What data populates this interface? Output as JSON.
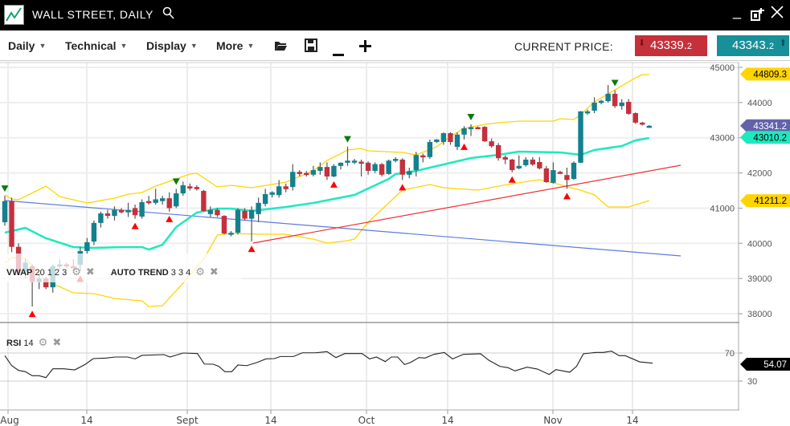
{
  "titlebar": {
    "title": "WALL STREET, DAILY",
    "icons": [
      "logo-chart-icon",
      "search-icon",
      "minimize-icon",
      "popout-icon",
      "close-icon"
    ]
  },
  "toolbar": {
    "menus": [
      {
        "label": "Daily"
      },
      {
        "label": "Technical"
      },
      {
        "label": "Display"
      },
      {
        "label": "More"
      }
    ],
    "icons": [
      "folder-open-icon",
      "save-icon",
      "zoom-out-icon",
      "zoom-in-icon"
    ],
    "current_price_label": "CURRENT PRICE:",
    "sell": {
      "main": "43339.",
      "small": "2",
      "color": "#c5303b"
    },
    "buy": {
      "main": "43343.",
      "small": "2",
      "color": "#17909a"
    }
  },
  "legends": {
    "vwap": {
      "name": "VWAP",
      "params": "20 1 2 3"
    },
    "trend": {
      "name": "AUTO TREND",
      "params": "3 3 4"
    },
    "rsi": {
      "name": "RSI",
      "params": "14"
    }
  },
  "chart_data": {
    "type": "candlestick",
    "colors": {
      "up": "#13808e",
      "down": "#c4303d",
      "vwap": "#1de9c0",
      "bands": "#ffd400",
      "trend_down": "#5b7be0",
      "trend_up": "#f03030",
      "signal_up": "#ff0000",
      "signal_down": "#0a7a0a"
    },
    "y_ticks": [
      "45000",
      "44000",
      "43000",
      "42000",
      "41000",
      "40000",
      "39000",
      "38000"
    ],
    "ylim": [
      38000,
      45000
    ],
    "x_ticks": [
      "Aug",
      "14",
      "Sept",
      "14",
      "Oct",
      "14",
      "Nov",
      "14"
    ],
    "candles_ohlc": [
      [
        40600,
        41350,
        40500,
        41200
      ],
      [
        41200,
        41300,
        39750,
        39900
      ],
      [
        39900,
        40000,
        39100,
        39200
      ],
      [
        39200,
        39550,
        39000,
        39450
      ],
      [
        39350,
        39400,
        38200,
        38900
      ],
      [
        38900,
        39150,
        38700,
        39000
      ],
      [
        39000,
        39050,
        38700,
        38750
      ],
      [
        38750,
        39400,
        38600,
        39350
      ],
      [
        39350,
        39550,
        39250,
        39400
      ],
      [
        39400,
        39450,
        39300,
        39350
      ],
      [
        39350,
        39550,
        39200,
        39300
      ],
      [
        39390,
        39900,
        39200,
        39780
      ],
      [
        39780,
        40150,
        39700,
        40030
      ],
      [
        40050,
        40650,
        39950,
        40580
      ],
      [
        40580,
        40900,
        40450,
        40850
      ],
      [
        40850,
        40950,
        40700,
        40780
      ],
      [
        40780,
        41050,
        40650,
        40950
      ],
      [
        40950,
        41000,
        40850,
        40880
      ],
      [
        40880,
        41150,
        40750,
        40950
      ],
      [
        41000,
        41100,
        40700,
        40800
      ],
      [
        40760,
        41250,
        40700,
        41170
      ],
      [
        41200,
        41350,
        41100,
        41150
      ],
      [
        41150,
        41550,
        41100,
        41250
      ],
      [
        41200,
        41350,
        41100,
        41280
      ],
      [
        41280,
        41450,
        40900,
        41000
      ],
      [
        41050,
        41550,
        41000,
        41420
      ],
      [
        41420,
        41750,
        41350,
        41650
      ],
      [
        41620,
        41700,
        41500,
        41560
      ],
      [
        41600,
        41650,
        41500,
        41540
      ],
      [
        41490,
        41520,
        40900,
        40920
      ],
      [
        40830,
        41050,
        40750,
        40950
      ],
      [
        40950,
        41000,
        40750,
        40800
      ],
      [
        40780,
        40800,
        40250,
        40280
      ],
      [
        40250,
        40350,
        40200,
        40300
      ],
      [
        40300,
        41000,
        40250,
        40950
      ],
      [
        40920,
        41000,
        40650,
        40700
      ],
      [
        40700,
        41050,
        40050,
        40950
      ],
      [
        40830,
        41300,
        40600,
        41150
      ],
      [
        41120,
        41550,
        41050,
        41400
      ],
      [
        41380,
        41480,
        41300,
        41450
      ],
      [
        41370,
        41800,
        41300,
        41620
      ],
      [
        41620,
        41700,
        41450,
        41540
      ],
      [
        41600,
        42250,
        41500,
        42030
      ],
      [
        42030,
        42080,
        41900,
        41970
      ],
      [
        42000,
        42050,
        41900,
        41960
      ],
      [
        41950,
        42200,
        41900,
        42080
      ],
      [
        42060,
        42300,
        41950,
        42170
      ],
      [
        42170,
        42300,
        41800,
        41900
      ],
      [
        41900,
        42250,
        41880,
        42200
      ],
      [
        42200,
        42300,
        42100,
        42290
      ],
      [
        42290,
        42750,
        42200,
        42350
      ],
      [
        42300,
        42400,
        42250,
        42350
      ],
      [
        42320,
        42380,
        41900,
        42280
      ],
      [
        42290,
        42330,
        41950,
        42060
      ],
      [
        42060,
        42300,
        42000,
        42250
      ],
      [
        42250,
        42280,
        41900,
        41950
      ],
      [
        41970,
        42380,
        41950,
        42350
      ],
      [
        42350,
        42450,
        42300,
        42400
      ],
      [
        42380,
        42420,
        41800,
        41950
      ],
      [
        41950,
        42150,
        41850,
        42050
      ],
      [
        42080,
        42600,
        41900,
        42510
      ],
      [
        42500,
        42550,
        42300,
        42450
      ],
      [
        42450,
        42950,
        42400,
        42880
      ],
      [
        42880,
        42960,
        42850,
        42950
      ],
      [
        42880,
        43150,
        42800,
        43130
      ],
      [
        43130,
        43160,
        42800,
        42880
      ],
      [
        42740,
        43150,
        42650,
        43090
      ],
      [
        43090,
        43330,
        42950,
        43270
      ],
      [
        43270,
        43380,
        43050,
        43300
      ],
      [
        43300,
        43320,
        43250,
        43280
      ],
      [
        43310,
        43330,
        42880,
        42900
      ],
      [
        42900,
        42980,
        42720,
        42760
      ],
      [
        42790,
        42850,
        42350,
        42420
      ],
      [
        42450,
        42500,
        42250,
        42380
      ],
      [
        42380,
        42400,
        42020,
        42080
      ],
      [
        42130,
        42500,
        42100,
        42200
      ],
      [
        42220,
        42450,
        42180,
        42380
      ],
      [
        42380,
        42450,
        42200,
        42240
      ],
      [
        42310,
        42450,
        42100,
        42130
      ],
      [
        42130,
        42200,
        41720,
        41740
      ],
      [
        41720,
        42300,
        41700,
        42080
      ],
      [
        42030,
        42060,
        41970,
        41990
      ],
      [
        41940,
        42150,
        41550,
        41800
      ],
      [
        41830,
        42330,
        41800,
        42290
      ],
      [
        42290,
        43760,
        42280,
        43750
      ],
      [
        43700,
        43800,
        43650,
        43750
      ],
      [
        43770,
        44150,
        43700,
        44000
      ],
      [
        44000,
        44080,
        43950,
        44050
      ],
      [
        44040,
        44500,
        44000,
        44250
      ],
      [
        44250,
        44350,
        43850,
        43900
      ],
      [
        43900,
        44100,
        43800,
        44000
      ],
      [
        44020,
        44100,
        43650,
        43680
      ],
      [
        43700,
        43720,
        43400,
        43430
      ],
      [
        43430,
        43450,
        43350,
        43380
      ],
      [
        43300,
        43360,
        43280,
        43340
      ]
    ],
    "vwap_line": [
      [
        0,
        40303
      ],
      [
        3,
        40440
      ],
      [
        6,
        40144
      ],
      [
        10,
        39893
      ],
      [
        13,
        39870
      ],
      [
        17,
        39893
      ],
      [
        20,
        39893
      ],
      [
        21,
        39824
      ],
      [
        23,
        39961
      ],
      [
        25,
        40463
      ],
      [
        28,
        40873
      ],
      [
        31,
        40987
      ],
      [
        33,
        40987
      ],
      [
        36,
        40919
      ],
      [
        41,
        41033
      ],
      [
        45,
        41147
      ],
      [
        48,
        41261
      ],
      [
        51,
        41375
      ],
      [
        53,
        41557
      ],
      [
        56,
        41831
      ],
      [
        57,
        41968
      ],
      [
        60,
        42059
      ],
      [
        64,
        42241
      ],
      [
        68,
        42424
      ],
      [
        72,
        42515
      ],
      [
        75,
        42606
      ],
      [
        81,
        42583
      ],
      [
        84,
        42515
      ],
      [
        86,
        42652
      ],
      [
        90,
        42766
      ],
      [
        92,
        42925
      ],
      [
        94,
        42994
      ]
    ],
    "upper_band": [
      [
        0,
        41375
      ],
      [
        1,
        41261
      ],
      [
        2,
        41238
      ],
      [
        6,
        41626
      ],
      [
        8,
        41329
      ],
      [
        12,
        41147
      ],
      [
        16,
        41284
      ],
      [
        18,
        41398
      ],
      [
        20,
        41443
      ],
      [
        22,
        41626
      ],
      [
        27,
        41968
      ],
      [
        28,
        41990
      ],
      [
        31,
        41603
      ],
      [
        33,
        41648
      ],
      [
        36,
        41580
      ],
      [
        41,
        41740
      ],
      [
        45,
        42059
      ],
      [
        47,
        42355
      ],
      [
        50,
        42652
      ],
      [
        52,
        42697
      ],
      [
        53,
        42629
      ],
      [
        58,
        42583
      ],
      [
        60,
        42515
      ],
      [
        63,
        42743
      ],
      [
        65,
        43039
      ],
      [
        67,
        43267
      ],
      [
        70,
        43381
      ],
      [
        72,
        43427
      ],
      [
        75,
        43472
      ],
      [
        80,
        43472
      ],
      [
        81,
        43541
      ],
      [
        83,
        43518
      ],
      [
        84,
        43655
      ],
      [
        86,
        44020
      ],
      [
        89,
        44362
      ],
      [
        92,
        44704
      ],
      [
        93,
        44795
      ],
      [
        94,
        44795
      ]
    ],
    "lower_band": [
      [
        0,
        39437
      ],
      [
        1,
        39596
      ],
      [
        3,
        39574
      ],
      [
        6,
        38935
      ],
      [
        10,
        38593
      ],
      [
        13,
        38570
      ],
      [
        16,
        38434
      ],
      [
        20,
        38365
      ],
      [
        21,
        38206
      ],
      [
        23,
        38228
      ],
      [
        26,
        38867
      ],
      [
        29,
        39551
      ],
      [
        31,
        40235
      ],
      [
        33,
        40280
      ],
      [
        38,
        40258
      ],
      [
        41,
        40258
      ],
      [
        45,
        40121
      ],
      [
        47,
        40007
      ],
      [
        50,
        40075
      ],
      [
        51,
        40121
      ],
      [
        53,
        40600
      ],
      [
        56,
        41147
      ],
      [
        58,
        41512
      ],
      [
        62,
        41671
      ],
      [
        64,
        41580
      ],
      [
        69,
        41512
      ],
      [
        72,
        41626
      ],
      [
        74,
        41694
      ],
      [
        78,
        41808
      ],
      [
        80,
        41717
      ],
      [
        84,
        41512
      ],
      [
        86,
        41375
      ],
      [
        88,
        41033
      ],
      [
        91,
        41033
      ],
      [
        94,
        41215
      ]
    ],
    "trend_lines": [
      {
        "from": [
          0,
          41215
        ],
        "to": [
          98.6,
          39642
        ],
        "kind": "trend_down"
      },
      {
        "from": [
          36.2,
          40007
        ],
        "to": [
          98.6,
          42218
        ],
        "kind": "trend_up"
      }
    ],
    "signals_down": [
      0,
      25,
      50,
      68,
      89
    ],
    "signals_up": [
      4,
      11,
      19,
      24,
      36,
      48,
      58,
      67,
      74,
      82
    ],
    "price_tags": [
      {
        "text": "44809.3",
        "value": 44809.3,
        "color": "#ffd400",
        "text_color": "#000"
      },
      {
        "text": "43341.2",
        "value": 43341.2,
        "color": "#6262aa",
        "text_color": "#fff"
      },
      {
        "text": "43010.2",
        "value": 43010.2,
        "color": "#1de9c0",
        "text_color": "#000"
      },
      {
        "text": "41211.2",
        "value": 41211.2,
        "color": "#ffd400",
        "text_color": "#000"
      }
    ],
    "rsi": {
      "y_ticks": [
        "70",
        "30"
      ],
      "tag": {
        "text": "54.07",
        "value": 54.07
      },
      "points": [
        [
          0,
          66.2
        ],
        [
          1,
          52
        ],
        [
          2,
          45.2
        ],
        [
          3,
          43.4
        ],
        [
          4,
          37.6
        ],
        [
          5,
          37.6
        ],
        [
          6,
          34.9
        ],
        [
          7,
          47.5
        ],
        [
          8.6,
          47.5
        ],
        [
          10.2,
          46
        ],
        [
          11.7,
          53.6
        ],
        [
          12.9,
          62
        ],
        [
          14.8,
          62.8
        ],
        [
          16.1,
          64.3
        ],
        [
          17.9,
          64.3
        ],
        [
          19,
          61.6
        ],
        [
          20,
          66.6
        ],
        [
          23.2,
          67.7
        ],
        [
          24.1,
          64.3
        ],
        [
          26,
          70
        ],
        [
          28.1,
          69.2
        ],
        [
          29.1,
          54.3
        ],
        [
          30.4,
          54
        ],
        [
          31.2,
          51
        ],
        [
          32.1,
          43.4
        ],
        [
          33.1,
          43.4
        ],
        [
          34,
          52.9
        ],
        [
          35.3,
          52
        ],
        [
          36.8,
          56.6
        ],
        [
          38.1,
          61.6
        ],
        [
          39.3,
          62
        ],
        [
          40.2,
          65
        ],
        [
          42.1,
          65
        ],
        [
          43.4,
          70.3
        ],
        [
          45.3,
          70.3
        ],
        [
          47,
          71.9
        ],
        [
          48.3,
          63.5
        ],
        [
          49.6,
          69.2
        ],
        [
          52.1,
          69.2
        ],
        [
          53.2,
          61.6
        ],
        [
          54.2,
          64.3
        ],
        [
          55.5,
          57.8
        ],
        [
          56.4,
          64.3
        ],
        [
          57.3,
          64.3
        ],
        [
          58.3,
          53.6
        ],
        [
          59.2,
          56.6
        ],
        [
          60.4,
          63.5
        ],
        [
          61.3,
          62.8
        ],
        [
          62.6,
          68.1
        ],
        [
          64.1,
          70.8
        ],
        [
          65.3,
          61.6
        ],
        [
          66.9,
          68.1
        ],
        [
          69.4,
          68.9
        ],
        [
          70.6,
          59.7
        ],
        [
          72.2,
          51
        ],
        [
          73.4,
          49.1
        ],
        [
          74.4,
          44.5
        ],
        [
          76.2,
          49.8
        ],
        [
          77.7,
          47.1
        ],
        [
          79.4,
          39.5
        ],
        [
          80.4,
          46.3
        ],
        [
          82.4,
          42.6
        ],
        [
          83.4,
          51
        ],
        [
          84.4,
          68.9
        ],
        [
          86.2,
          70.8
        ],
        [
          87.3,
          70.8
        ],
        [
          88.5,
          72.6
        ],
        [
          89.6,
          66.2
        ],
        [
          90.5,
          66.2
        ],
        [
          92.6,
          57.4
        ],
        [
          94.5,
          55.5
        ]
      ]
    }
  }
}
